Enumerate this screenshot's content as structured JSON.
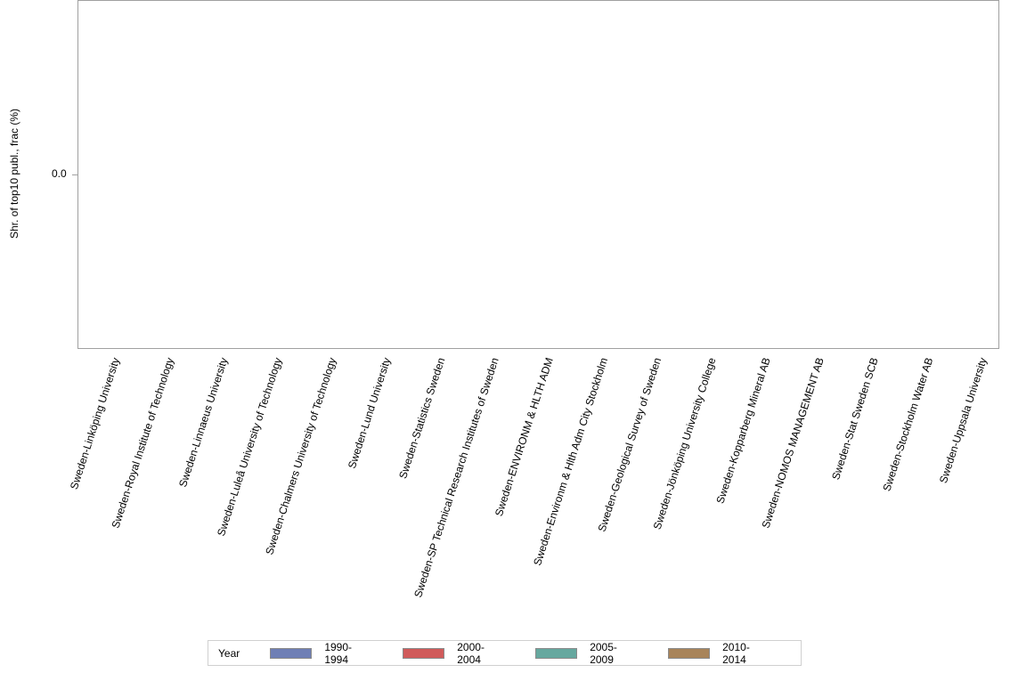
{
  "chart_data": {
    "type": "bar",
    "title": "",
    "xlabel": "",
    "ylabel": "Shr. of top10 publ., frac (%)",
    "y_ticks": [
      "0.0"
    ],
    "ylim": [
      0,
      0
    ],
    "grid": false,
    "legend_position": "bottom",
    "categories": [
      "Sweden-Linköping University",
      "Sweden-Royal Institute of Technology",
      "Sweden-Linnaeus University",
      "Sweden-Luleå University of Technology",
      "Sweden-Chalmers University of Technology",
      "Sweden-Lund University",
      "Sweden-Statistics Sweden",
      "Sweden-SP Technical Research Institutes of Sweden",
      "Sweden-ENVIRONM & HLTH ADM",
      "Sweden-Environm & Hlth Adm City Stockholm",
      "Sweden-Geological Survey of Sweden",
      "Sweden-Jönköping University College",
      "Sweden-Kopparberg Mineral AB",
      "Sweden-NOMOS MANAGEMENT AB",
      "Sweden-Stat Sweden SCB",
      "Sweden-Stockholm Water AB",
      "Sweden-Uppsala University"
    ],
    "series": [
      {
        "name": "1990-1994",
        "color": "#6f7fb5",
        "values": [
          0,
          0,
          0,
          0,
          0,
          0,
          0,
          0,
          0,
          0,
          0,
          0,
          0,
          0,
          0,
          0,
          0
        ]
      },
      {
        "name": "2000-2004",
        "color": "#d05b5b",
        "values": [
          0,
          0,
          0,
          0,
          0,
          0,
          0,
          0,
          0,
          0,
          0,
          0,
          0,
          0,
          0,
          0,
          0
        ]
      },
      {
        "name": "2005-2009",
        "color": "#66a89f",
        "values": [
          0,
          0,
          0,
          0,
          0,
          0,
          0,
          0,
          0,
          0,
          0,
          0,
          0,
          0,
          0,
          0,
          0
        ]
      },
      {
        "name": "2010-2014",
        "color": "#a8845a",
        "values": [
          0,
          0,
          0,
          0,
          0,
          0,
          0,
          0,
          0,
          0,
          0,
          0,
          0,
          0,
          0,
          0,
          0
        ]
      }
    ]
  },
  "legend": {
    "title": "Year",
    "items": [
      {
        "label": "1990-1994",
        "color": "#6f7fb5"
      },
      {
        "label": "2000-2004",
        "color": "#d05b5b"
      },
      {
        "label": "2005-2009",
        "color": "#66a89f"
      },
      {
        "label": "2010-2014",
        "color": "#a8845a"
      }
    ]
  }
}
